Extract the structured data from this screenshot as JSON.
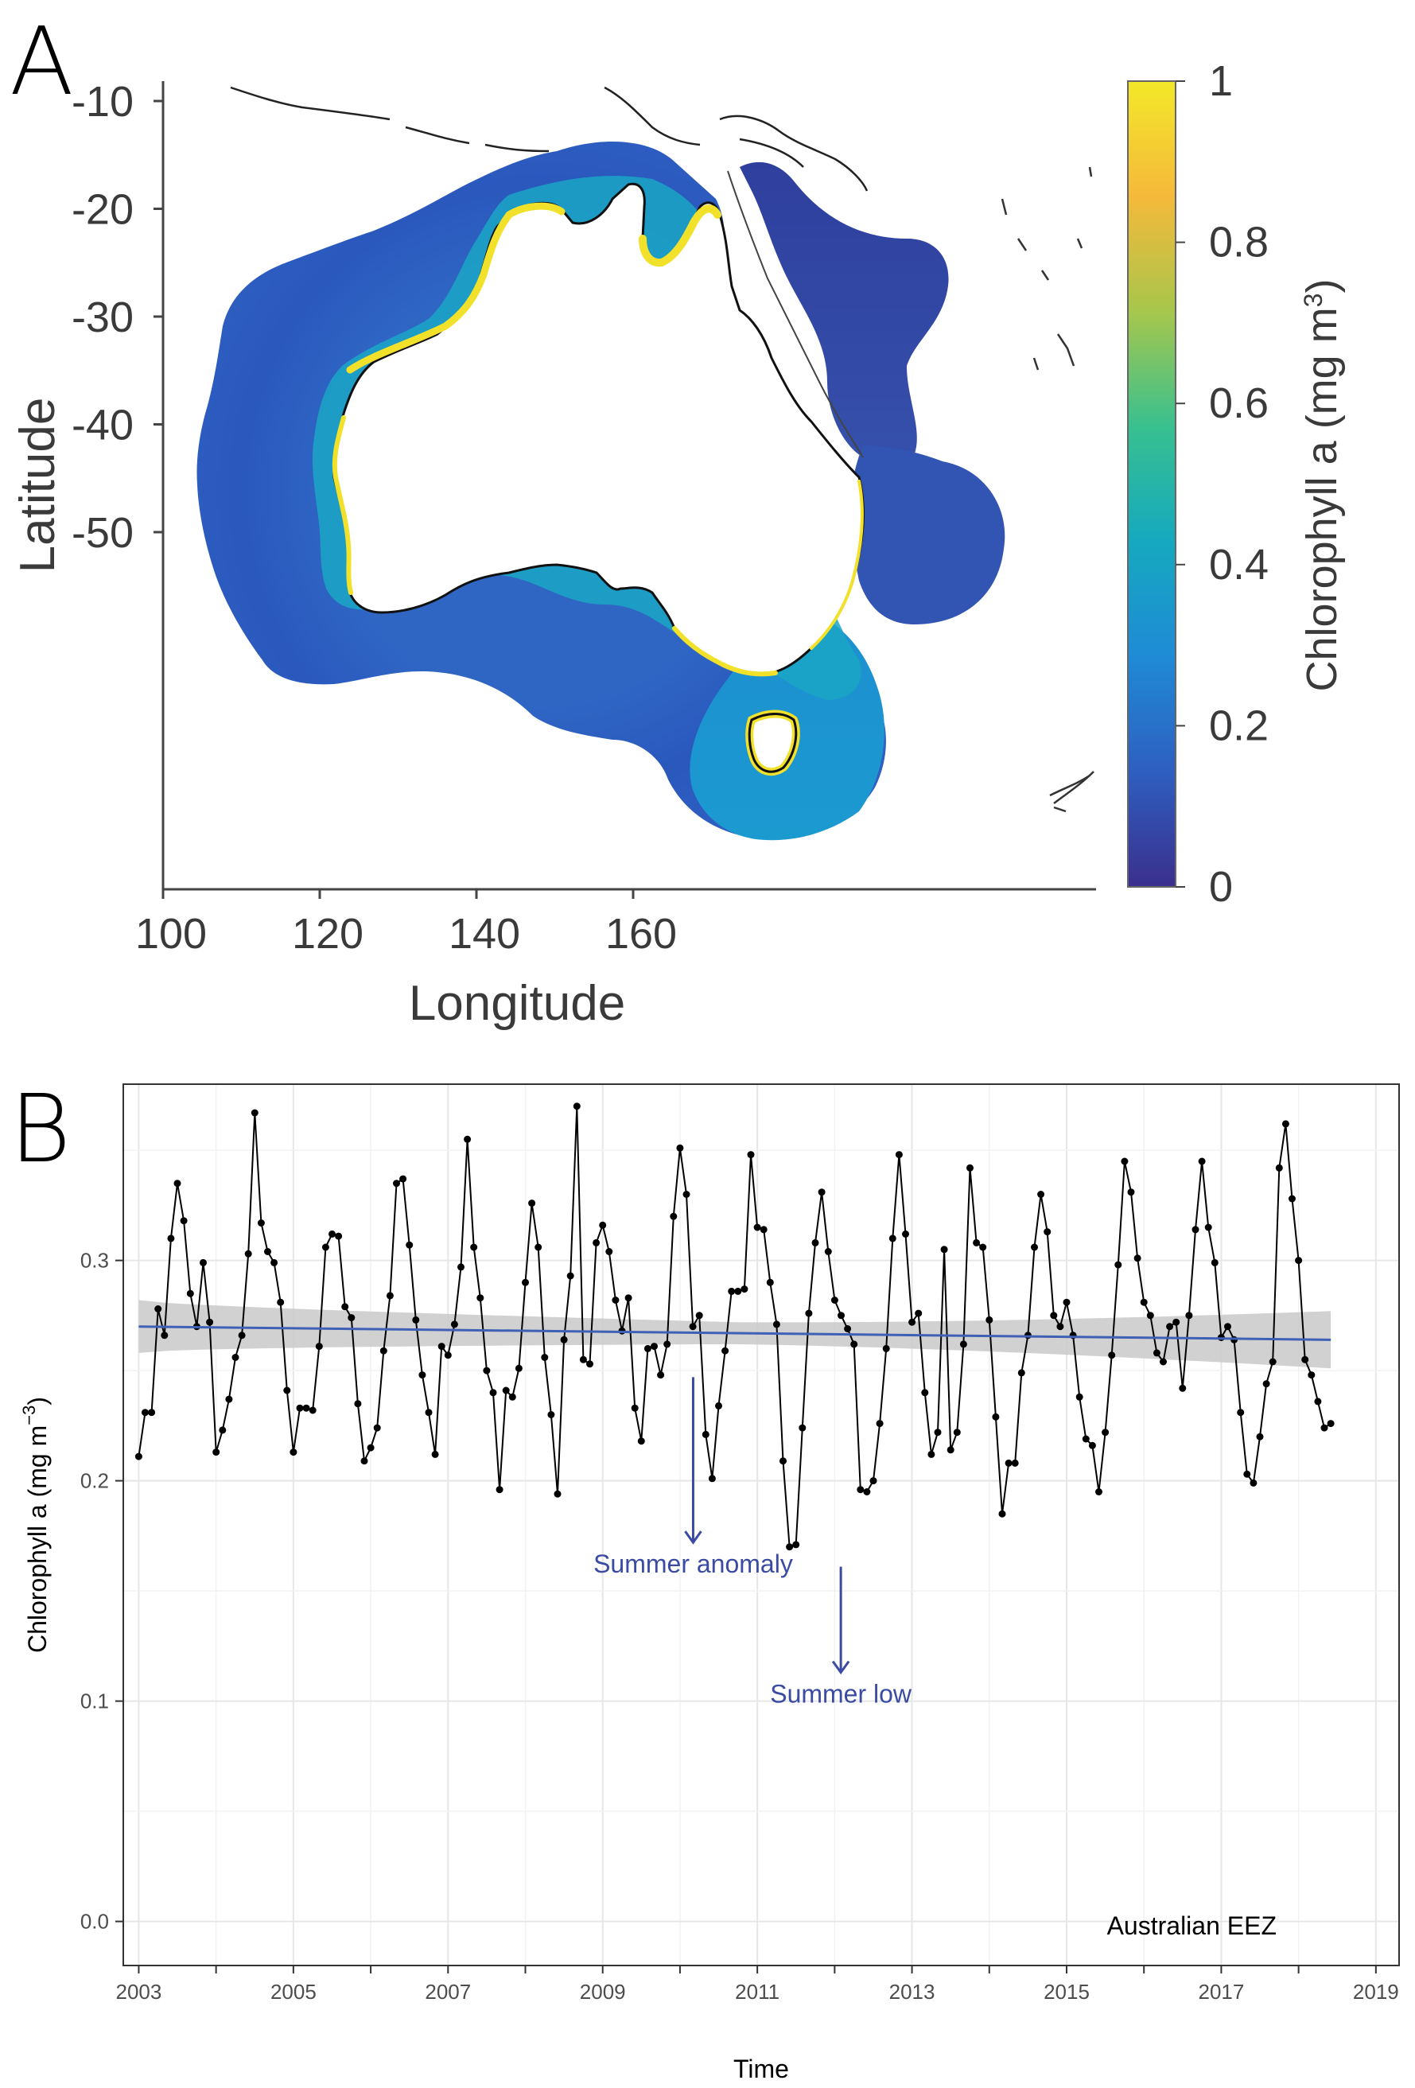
{
  "panelA": {
    "letter": "A",
    "xlabel": "Longitude",
    "ylabel": "Latitude",
    "xticks": [
      "100",
      "120",
      "140",
      "160"
    ],
    "yticks": [
      "-10",
      "-20",
      "-30",
      "-40",
      "-50"
    ],
    "colorbar_label": "Chlorophyll a  (mg m",
    "colorbar_label_sup": "3",
    "colorbar_label_end": ")",
    "colorbar_ticks": [
      "1",
      "0.8",
      "0.6",
      "0.4",
      "0.2",
      "0"
    ],
    "colormap": [
      "#3b2f8d",
      "#2e5fc0",
      "#1f8bd6",
      "#15a9bf",
      "#38c08f",
      "#a7c64c",
      "#f5b93a",
      "#f3e829"
    ],
    "land_color": "#ffffff",
    "coast_color": "#000000"
  },
  "chart_data": {
    "type": "line",
    "letter": "B",
    "xlabel": "Time",
    "ylabel": "Chlorophyll a (mg m",
    "ylabel_sup": "−3",
    "ylabel_end": ")",
    "xlim": [
      2002.8,
      2019.3
    ],
    "ylim": [
      -0.02,
      0.38
    ],
    "xticks": [
      2003,
      2005,
      2007,
      2009,
      2011,
      2013,
      2015,
      2017,
      2019
    ],
    "yticks": [
      0.0,
      0.1,
      0.2,
      0.3
    ],
    "ytick_labels": [
      "0.0",
      "0.1",
      "0.2",
      "0.3"
    ],
    "grid": true,
    "region_label": "Australian EEZ",
    "line_color": "#000000",
    "trend_color": "#3f60b5",
    "ribbon_color": "#cfcfcf",
    "monthly_values": [
      0.211,
      0.231,
      0.231,
      0.278,
      0.266,
      0.31,
      0.335,
      0.318,
      0.285,
      0.27,
      0.299,
      0.272,
      0.213,
      0.223,
      0.237,
      0.256,
      0.266,
      0.303,
      0.367,
      0.317,
      0.304,
      0.299,
      0.281,
      0.241,
      0.213,
      0.233,
      0.233,
      0.232,
      0.261,
      0.306,
      0.312,
      0.311,
      0.279,
      0.274,
      0.235,
      0.209,
      0.215,
      0.224,
      0.259,
      0.284,
      0.335,
      0.337,
      0.307,
      0.273,
      0.248,
      0.231,
      0.212,
      0.261,
      0.257,
      0.271,
      0.297,
      0.355,
      0.306,
      0.283,
      0.25,
      0.24,
      0.196,
      0.241,
      0.238,
      0.251,
      0.29,
      0.326,
      0.306,
      0.256,
      0.23,
      0.194,
      0.264,
      0.293,
      0.37,
      0.255,
      0.253,
      0.308,
      0.316,
      0.304,
      0.282,
      0.268,
      0.283,
      0.233,
      0.218,
      0.26,
      0.261,
      0.248,
      0.262,
      0.32,
      0.351,
      0.33,
      0.27,
      0.275,
      0.221,
      0.201,
      0.234,
      0.259,
      0.286,
      0.286,
      0.287,
      0.348,
      0.315,
      0.314,
      0.29,
      0.271,
      0.209,
      0.17,
      0.171,
      0.224,
      0.276,
      0.308,
      0.331,
      0.304,
      0.282,
      0.275,
      0.269,
      0.262,
      0.196,
      0.195,
      0.2,
      0.226,
      0.26,
      0.31,
      0.348,
      0.312,
      0.272,
      0.276,
      0.24,
      0.212,
      0.222,
      0.305,
      0.214,
      0.222,
      0.262,
      0.342,
      0.308,
      0.306,
      0.273,
      0.229,
      0.185,
      0.208,
      0.208,
      0.249,
      0.266,
      0.306,
      0.33,
      0.313,
      0.275,
      0.27,
      0.281,
      0.266,
      0.238,
      0.219,
      0.216,
      0.195,
      0.222,
      0.257,
      0.298,
      0.345,
      0.331,
      0.301,
      0.281,
      0.275,
      0.258,
      0.254,
      0.27,
      0.272,
      0.242,
      0.275,
      0.314,
      0.345,
      0.315,
      0.299,
      0.265,
      0.27,
      0.264,
      0.231,
      0.203,
      0.199,
      0.22,
      0.244,
      0.254,
      0.342,
      0.362,
      0.328,
      0.3,
      0.255,
      0.248,
      0.236,
      0.224,
      0.226
    ],
    "trend": {
      "start": 0.27,
      "end": 0.264
    },
    "ribbon": {
      "start_half_width": 0.012,
      "mid_half_width": 0.005,
      "end_half_width": 0.013
    },
    "annotations": [
      {
        "label": "Summer anomaly",
        "x": 2010.17,
        "y_from": 0.247,
        "y_to": 0.172
      },
      {
        "label": "Summer low",
        "x": 2012.08,
        "y_from": 0.161,
        "y_to": 0.113
      }
    ]
  }
}
